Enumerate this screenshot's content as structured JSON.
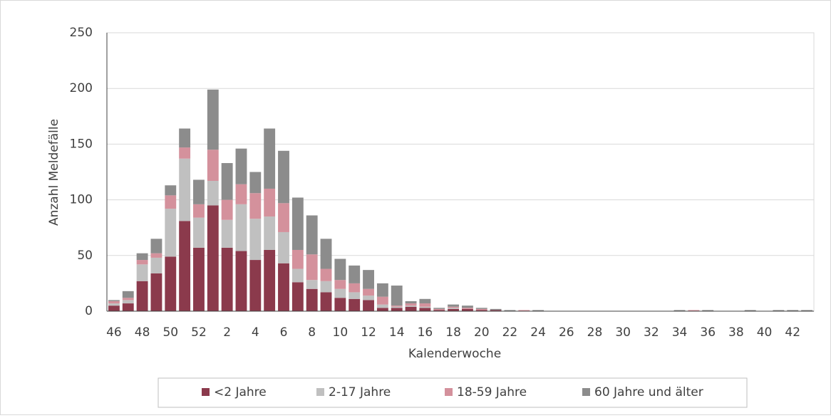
{
  "chart_data": {
    "type": "stacked_bar",
    "x_label": "Kalenderwoche",
    "y_label": "Anzahl Meldefälle",
    "categories": [
      "46",
      null,
      "48",
      null,
      "50",
      null,
      "52",
      null,
      "2",
      null,
      "4",
      null,
      "6",
      null,
      "8",
      null,
      "10",
      null,
      "12",
      null,
      "14",
      null,
      "16",
      null,
      "18",
      null,
      "20",
      null,
      "22",
      null,
      "24",
      null,
      "26",
      null,
      "28",
      null,
      "30",
      null,
      "32",
      null,
      "34",
      null,
      "36",
      null,
      "38",
      null,
      "40",
      null,
      "42",
      null
    ],
    "series": [
      {
        "name": "<2 Jahre",
        "color": "#8b3a4c",
        "values": [
          5,
          7,
          27,
          34,
          49,
          81,
          57,
          95,
          57,
          54,
          46,
          55,
          43,
          26,
          20,
          17,
          12,
          11,
          10,
          3,
          3,
          4,
          3,
          1,
          2,
          2,
          1,
          1,
          0,
          0,
          0,
          0,
          0,
          0,
          0,
          0,
          0,
          0,
          0,
          0,
          0,
          0,
          0,
          0,
          0,
          0,
          0,
          0,
          0,
          0
        ]
      },
      {
        "name": "2-17 Jahre",
        "color": "#c0c0c0",
        "values": [
          2,
          3,
          15,
          14,
          43,
          56,
          27,
          22,
          25,
          42,
          37,
          30,
          28,
          12,
          8,
          10,
          8,
          6,
          4,
          3,
          1,
          1,
          1,
          0,
          1,
          0,
          0,
          0,
          0,
          0,
          0,
          0,
          0,
          0,
          0,
          0,
          0,
          0,
          0,
          0,
          0,
          0,
          0,
          0,
          0,
          0,
          0,
          0,
          0,
          0
        ]
      },
      {
        "name": "18-59 Jahre",
        "color": "#d4919c",
        "values": [
          2,
          2,
          4,
          4,
          12,
          10,
          12,
          28,
          18,
          18,
          23,
          25,
          26,
          17,
          23,
          11,
          8,
          8,
          6,
          7,
          1,
          2,
          3,
          1,
          1,
          1,
          1,
          0,
          0,
          1,
          0,
          0,
          0,
          0,
          0,
          0,
          0,
          0,
          0,
          0,
          0,
          1,
          0,
          0,
          0,
          0,
          0,
          0,
          0,
          0
        ]
      },
      {
        "name": "60 Jahre und älter",
        "color": "#8c8c8c",
        "values": [
          1,
          6,
          6,
          13,
          9,
          17,
          22,
          54,
          33,
          32,
          19,
          54,
          47,
          47,
          35,
          27,
          19,
          16,
          17,
          12,
          18,
          2,
          4,
          1,
          2,
          2,
          1,
          1,
          1,
          0,
          1,
          0,
          0,
          0,
          0,
          0,
          0,
          0,
          0,
          0,
          1,
          0,
          1,
          0,
          0,
          1,
          0,
          1,
          1,
          1
        ]
      }
    ],
    "ylim": [
      0,
      250
    ],
    "yticks": [
      0,
      50,
      100,
      150,
      200,
      250
    ],
    "grid": true
  }
}
